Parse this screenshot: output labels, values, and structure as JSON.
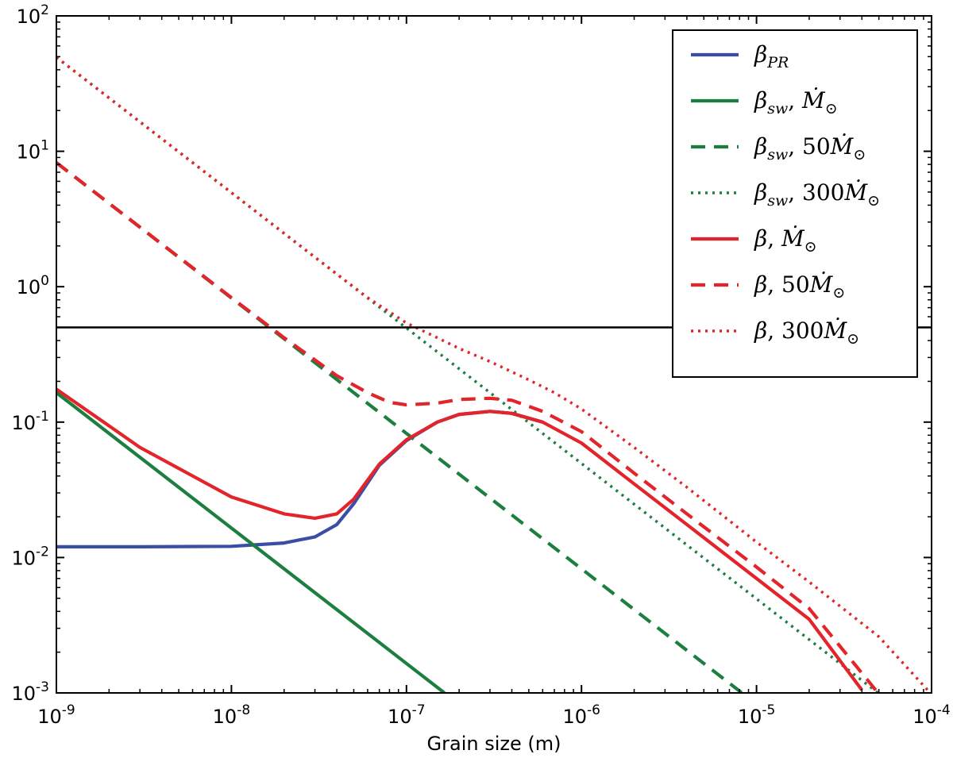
{
  "chart_data": {
    "type": "line",
    "title": "",
    "xlabel": "Grain size (m)",
    "ylabel": "",
    "xscale": "log",
    "yscale": "log",
    "xlim": [
      1e-09,
      0.0001
    ],
    "ylim": [
      0.001,
      100
    ],
    "grid": false,
    "legend_position": "top-right",
    "x_ticks": [
      {
        "value": 1e-09,
        "base": "10",
        "exp": "-9"
      },
      {
        "value": 1e-08,
        "base": "10",
        "exp": "-8"
      },
      {
        "value": 1e-07,
        "base": "10",
        "exp": "-7"
      },
      {
        "value": 1e-06,
        "base": "10",
        "exp": "-6"
      },
      {
        "value": 1e-05,
        "base": "10",
        "exp": "-5"
      },
      {
        "value": 0.0001,
        "base": "10",
        "exp": "-4"
      }
    ],
    "y_ticks": [
      {
        "value": 0.001,
        "base": "10",
        "exp": "-3"
      },
      {
        "value": 0.01,
        "base": "10",
        "exp": "-2"
      },
      {
        "value": 0.1,
        "base": "10",
        "exp": "-1"
      },
      {
        "value": 1,
        "base": "10",
        "exp": "0"
      },
      {
        "value": 10,
        "base": "10",
        "exp": "1"
      },
      {
        "value": 100,
        "base": "10",
        "exp": "2"
      }
    ],
    "reference_line": {
      "y": 0.5,
      "color": "#000000"
    },
    "series": [
      {
        "name": "β_PR",
        "legend": {
          "sym": "β",
          "sub": "PR",
          "suffix": "",
          "coef": ""
        },
        "color": "#3b4ea5",
        "style": "solid",
        "x": [
          1e-09,
          3e-09,
          1e-08,
          2e-08,
          3e-08,
          4e-08,
          5e-08,
          7e-08,
          1e-07,
          1.5e-07,
          2e-07,
          3e-07,
          4e-07,
          6e-07
        ],
        "y": [
          0.012,
          0.012,
          0.0121,
          0.0128,
          0.0142,
          0.0175,
          0.025,
          0.048,
          0.073,
          0.1,
          0.114,
          0.12,
          0.116,
          0.1
        ]
      },
      {
        "name": "β_sw, Ṁ⊙",
        "legend": {
          "sym": "β",
          "sub": "sw",
          "suffix": "M",
          "coef": ""
        },
        "color": "#1c7f3f",
        "style": "solid",
        "x": [
          1e-09,
          1.65e-07
        ],
        "y": [
          0.165,
          0.001
        ]
      },
      {
        "name": "β_sw, 50Ṁ⊙",
        "legend": {
          "sym": "β",
          "sub": "sw",
          "suffix": "M",
          "coef": "50"
        },
        "color": "#1c7f3f",
        "style": "dashed",
        "x": [
          1e-09,
          8.25e-06
        ],
        "y": [
          8.25,
          0.001
        ]
      },
      {
        "name": "β_sw, 300Ṁ⊙",
        "legend": {
          "sym": "β",
          "sub": "sw",
          "suffix": "M",
          "coef": "300"
        },
        "color": "#1c7f3f",
        "style": "dotted",
        "x": [
          1e-09,
          4.95e-05
        ],
        "y": [
          49.5,
          0.001
        ]
      },
      {
        "name": "β, Ṁ⊙",
        "legend": {
          "sym": "β",
          "sub": "",
          "suffix": "M",
          "coef": ""
        },
        "color": "#e3242b",
        "style": "solid",
        "x": [
          1e-09,
          3e-09,
          1e-08,
          2e-08,
          3e-08,
          4e-08,
          5e-08,
          7e-08,
          1e-07,
          1.5e-07,
          2e-07,
          3e-07,
          4e-07,
          6e-07,
          1e-06,
          2e-06,
          4e-06,
          1e-05,
          2e-05,
          4e-05
        ],
        "y": [
          0.175,
          0.065,
          0.028,
          0.021,
          0.0195,
          0.021,
          0.027,
          0.049,
          0.074,
          0.1,
          0.114,
          0.12,
          0.116,
          0.1,
          0.07,
          0.035,
          0.0175,
          0.007,
          0.0035,
          0.00105
        ]
      },
      {
        "name": "β, 50Ṁ⊙",
        "legend": {
          "sym": "β",
          "sub": "",
          "suffix": "M",
          "coef": "50"
        },
        "color": "#e3242b",
        "style": "dashed",
        "x": [
          1e-09,
          3e-09,
          1e-08,
          2e-08,
          4e-08,
          6e-08,
          8e-08,
          1e-07,
          1.5e-07,
          2e-07,
          3e-07,
          4e-07,
          6e-07,
          1e-06,
          2e-06,
          4e-06,
          1e-05,
          2e-05,
          4.8e-05
        ],
        "y": [
          8.25,
          2.75,
          0.83,
          0.42,
          0.22,
          0.165,
          0.14,
          0.134,
          0.138,
          0.147,
          0.15,
          0.145,
          0.12,
          0.085,
          0.042,
          0.021,
          0.0085,
          0.0042,
          0.00105
        ]
      },
      {
        "name": "β, 300Ṁ⊙",
        "legend": {
          "sym": "β",
          "sub": "",
          "suffix": "M",
          "coef": "300"
        },
        "color": "#e3242b",
        "style": "dotted",
        "x": [
          1e-09,
          3e-09,
          1e-08,
          3e-08,
          6e-08,
          1e-07,
          1.5e-07,
          2e-07,
          3e-07,
          5e-07,
          7e-07,
          1e-06,
          2e-06,
          4e-06,
          1e-05,
          2e-05,
          5e-05,
          9.5e-05
        ],
        "y": [
          49.5,
          16.5,
          4.95,
          1.65,
          0.83,
          0.54,
          0.42,
          0.35,
          0.28,
          0.205,
          0.165,
          0.125,
          0.065,
          0.033,
          0.013,
          0.0066,
          0.0026,
          0.00105
        ]
      }
    ]
  }
}
